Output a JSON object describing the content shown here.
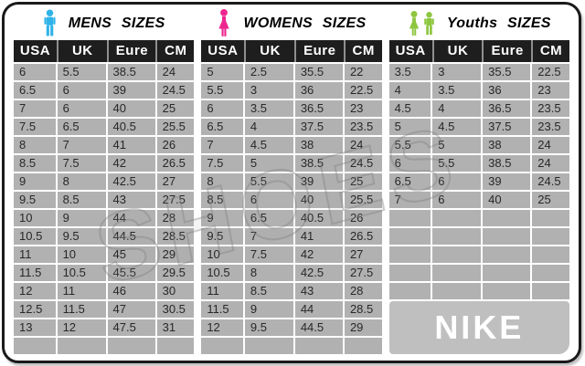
{
  "watermark": "SHOES",
  "columns": [
    "USA",
    "UK",
    "Eure",
    "CM"
  ],
  "nike": {
    "label": "NIKE"
  },
  "colors": {
    "header_bg": "#1e1e1e",
    "cell_bg": "#b1b1b1",
    "nike_bg": "#bfbfbf",
    "mens_icon": "#2fb3e8",
    "womens_icon": "#ed268f",
    "youths_icon": "#8dc63f"
  },
  "sections": [
    {
      "title": "MENS SIZES",
      "icon": "male-icon",
      "icon_color": "#2fb3e8",
      "empty_rows": 1,
      "rows": [
        [
          "6",
          "5.5",
          "38.5",
          "24"
        ],
        [
          "6.5",
          "6",
          "39",
          "24.5"
        ],
        [
          "7",
          "6",
          "40",
          "25"
        ],
        [
          "7.5",
          "6.5",
          "40.5",
          "25.5"
        ],
        [
          "8",
          "7",
          "41",
          "26"
        ],
        [
          "8.5",
          "7.5",
          "42",
          "26.5"
        ],
        [
          "9",
          "8",
          "42.5",
          "27"
        ],
        [
          "9.5",
          "8.5",
          "43",
          "27.5"
        ],
        [
          "10",
          "9",
          "44",
          "28"
        ],
        [
          "10.5",
          "9.5",
          "44.5",
          "28.5"
        ],
        [
          "11",
          "10",
          "45",
          "29"
        ],
        [
          "11.5",
          "10.5",
          "45.5",
          "29.5"
        ],
        [
          "12",
          "11",
          "46",
          "30"
        ],
        [
          "12.5",
          "11.5",
          "47",
          "30.5"
        ],
        [
          "13",
          "12",
          "47.5",
          "31"
        ]
      ]
    },
    {
      "title": "WOMENS SIZES",
      "icon": "female-icon",
      "icon_color": "#ed268f",
      "empty_rows": 1,
      "rows": [
        [
          "5",
          "2.5",
          "35.5",
          "22"
        ],
        [
          "5.5",
          "3",
          "36",
          "22.5"
        ],
        [
          "6",
          "3.5",
          "36.5",
          "23"
        ],
        [
          "6.5",
          "4",
          "37.5",
          "23.5"
        ],
        [
          "7",
          "4.5",
          "38",
          "24"
        ],
        [
          "7.5",
          "5",
          "38.5",
          "24.5"
        ],
        [
          "8",
          "5.5",
          "39",
          "25"
        ],
        [
          "8.5",
          "6",
          "40",
          "25.5"
        ],
        [
          "9",
          "6.5",
          "40.5",
          "26"
        ],
        [
          "9.5",
          "7",
          "41",
          "26.5"
        ],
        [
          "10",
          "7.5",
          "42",
          "27"
        ],
        [
          "10.5",
          "8",
          "42.5",
          "27.5"
        ],
        [
          "11",
          "8.5",
          "43",
          "28"
        ],
        [
          "11.5",
          "9",
          "44",
          "28.5"
        ],
        [
          "12",
          "9.5",
          "44.5",
          "29"
        ]
      ]
    },
    {
      "title": "Youths SIZES",
      "icon": "children-icon",
      "icon_color": "#8dc63f",
      "empty_rows": 5,
      "rows": [
        [
          "3.5",
          "3",
          "35.5",
          "22.5"
        ],
        [
          "4",
          "3.5",
          "36",
          "23"
        ],
        [
          "4.5",
          "4",
          "36.5",
          "23.5"
        ],
        [
          "5",
          "4.5",
          "37.5",
          "23.5"
        ],
        [
          "5.5",
          "5",
          "38",
          "24"
        ],
        [
          "6",
          "5.5",
          "38.5",
          "24"
        ],
        [
          "6.5",
          "6",
          "39",
          "24.5"
        ],
        [
          "7",
          "6",
          "40",
          "25"
        ]
      ]
    }
  ]
}
